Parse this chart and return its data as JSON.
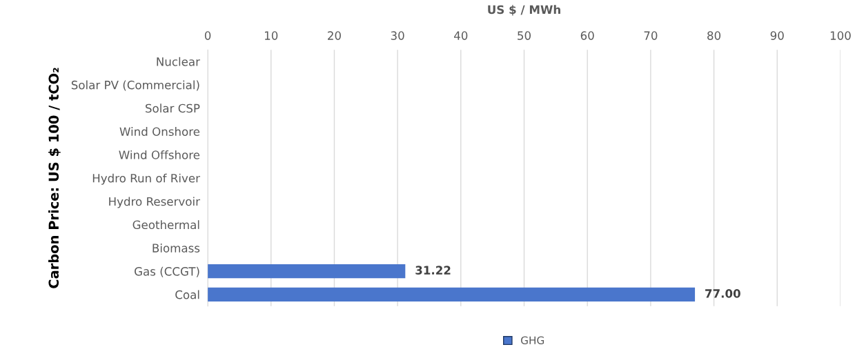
{
  "chart_data": {
    "type": "bar",
    "orientation": "horizontal",
    "xlabel": "US $ / MWh",
    "ylabel": "Carbon Price: US $ 100 / tCO₂",
    "categories": [
      "Nuclear",
      "Solar PV (Commercial)",
      "Solar CSP",
      "Wind Onshore",
      "Wind Offshore",
      "Hydro Run of River",
      "Hydro Reservoir",
      "Geothermal",
      "Biomass",
      "Gas (CCGT)",
      "Coal"
    ],
    "series": [
      {
        "name": "GHG",
        "color": "#4a76cc",
        "values": [
          0,
          0,
          0,
          0,
          0,
          0,
          0,
          0,
          0,
          31.22,
          77.0
        ],
        "value_labels": [
          null,
          null,
          null,
          null,
          null,
          null,
          null,
          null,
          null,
          "31.22",
          "77.00"
        ]
      }
    ],
    "xlim": [
      0,
      100
    ],
    "xticks": [
      0,
      10,
      20,
      30,
      40,
      50,
      60,
      70,
      80,
      90,
      100
    ],
    "grid": "x",
    "legend": "bottom"
  }
}
